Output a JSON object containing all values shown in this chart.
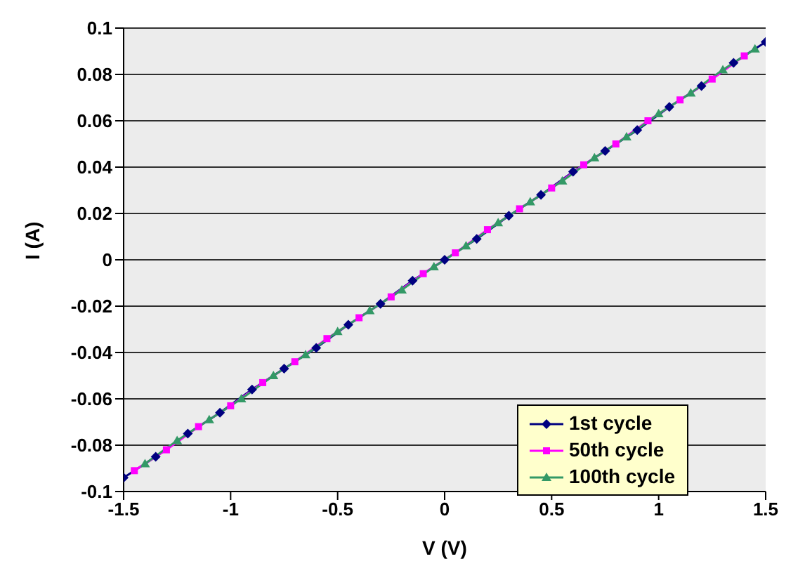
{
  "chart_data": {
    "type": "line",
    "xlabel": "V (V)",
    "ylabel": "I (A)",
    "series": [
      {
        "name": "1st cycle",
        "color": "#000080",
        "marker": "diamond",
        "x": [
          -1.5,
          -1.35,
          -1.2,
          -1.05,
          -0.9,
          -0.75,
          -0.6,
          -0.45,
          -0.3,
          -0.15,
          0,
          0.15,
          0.3,
          0.45,
          0.6,
          0.75,
          0.9,
          1.05,
          1.2,
          1.35,
          1.5
        ],
        "values": [
          -0.094,
          -0.085,
          -0.075,
          -0.066,
          -0.056,
          -0.047,
          -0.038,
          -0.028,
          -0.019,
          -0.009,
          0,
          0.009,
          0.019,
          0.028,
          0.038,
          0.047,
          0.056,
          0.066,
          0.075,
          0.085,
          0.094
        ]
      },
      {
        "name": "50th cycle",
        "color": "#ff00ff",
        "marker": "square",
        "x": [
          -1.45,
          -1.3,
          -1.15,
          -1.0,
          -0.85,
          -0.7,
          -0.55,
          -0.4,
          -0.25,
          -0.1,
          0.05,
          0.2,
          0.35,
          0.5,
          0.65,
          0.8,
          0.95,
          1.1,
          1.25,
          1.4
        ],
        "values": [
          -0.091,
          -0.082,
          -0.072,
          -0.063,
          -0.053,
          -0.044,
          -0.034,
          -0.025,
          -0.016,
          -0.006,
          0.003,
          0.013,
          0.022,
          0.031,
          0.041,
          0.05,
          0.06,
          0.069,
          0.078,
          0.088
        ]
      },
      {
        "name": "100th cycle",
        "color": "#339966",
        "marker": "triangle",
        "x": [
          -1.4,
          -1.25,
          -1.1,
          -0.95,
          -0.8,
          -0.65,
          -0.5,
          -0.35,
          -0.2,
          -0.05,
          0.1,
          0.25,
          0.4,
          0.55,
          0.7,
          0.85,
          1.0,
          1.15,
          1.3,
          1.45
        ],
        "values": [
          -0.088,
          -0.078,
          -0.069,
          -0.06,
          -0.05,
          -0.041,
          -0.031,
          -0.022,
          -0.013,
          -0.003,
          0.006,
          0.016,
          0.025,
          0.034,
          0.044,
          0.053,
          0.063,
          0.072,
          0.082,
          0.091
        ]
      }
    ],
    "xlim": [
      -1.5,
      1.5
    ],
    "xticks": [
      -1.5,
      -1,
      -0.5,
      0,
      0.5,
      1,
      1.5
    ],
    "ylim": [
      -0.1,
      0.1
    ],
    "yticks": [
      -0.1,
      -0.08,
      -0.06,
      -0.04,
      -0.02,
      0,
      0.02,
      0.04,
      0.06,
      0.08,
      0.1
    ],
    "grid": "y",
    "legend": "bottom right"
  }
}
